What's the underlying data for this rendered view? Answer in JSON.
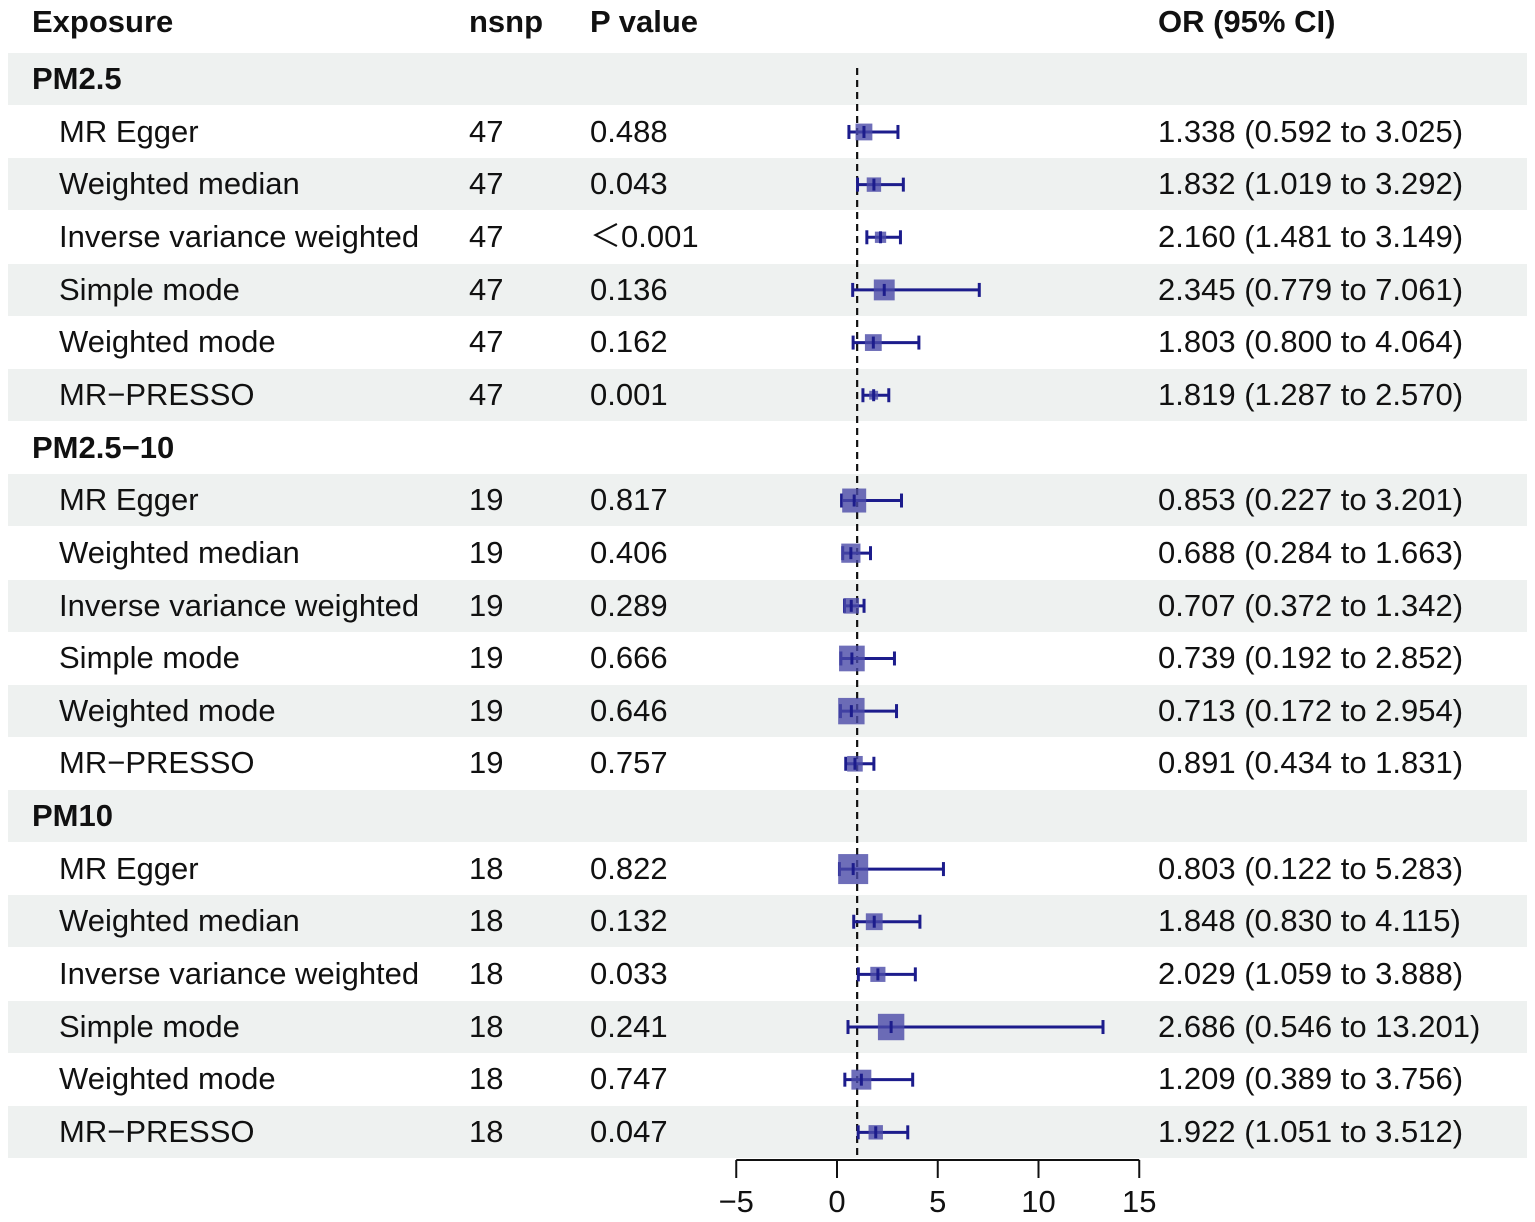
{
  "headers": {
    "exposure": "Exposure",
    "nsnp": "nsnp",
    "pvalue": "P value",
    "or_ci": "OR (95% CI)"
  },
  "colors": {
    "stripe": "#eef1f0",
    "marker": "#1c1c8c",
    "box_fill": "#4a4aa8"
  },
  "chart_data": {
    "type": "forest",
    "reference_line": 1,
    "xlim": [
      -5,
      15
    ],
    "x_ticks": [
      -5,
      0,
      5,
      10,
      15
    ],
    "x_tick_labels": [
      "−5",
      "0",
      "5",
      "10",
      "15"
    ],
    "rows": [
      {
        "kind": "group",
        "label": "PM2.5"
      },
      {
        "kind": "item",
        "label": "MR Egger",
        "nsnp": "47",
        "p": "0.488",
        "ci_text": "1.338 (0.592 to 3.025)",
        "or": 1.338,
        "lo": 0.592,
        "hi": 3.025,
        "weight": 0.45
      },
      {
        "kind": "item",
        "label": "Weighted median",
        "nsnp": "47",
        "p": "0.043",
        "ci_text": "1.832 (1.019 to 3.292)",
        "or": 1.832,
        "lo": 1.019,
        "hi": 3.292,
        "weight": 0.35
      },
      {
        "kind": "item",
        "label": "Inverse variance weighted",
        "nsnp": "47",
        "p": "＜0.001",
        "ci_text": "2.160 (1.481 to 3.149)",
        "or": 2.16,
        "lo": 1.481,
        "hi": 3.149,
        "weight": 0.22
      },
      {
        "kind": "item",
        "label": "Simple mode",
        "nsnp": "47",
        "p": "0.136",
        "ci_text": "2.345 (0.779 to 7.061)",
        "or": 2.345,
        "lo": 0.779,
        "hi": 7.061,
        "weight": 0.62
      },
      {
        "kind": "item",
        "label": "Weighted mode",
        "nsnp": "47",
        "p": "0.162",
        "ci_text": "1.803 (0.800 to 4.064)",
        "or": 1.803,
        "lo": 0.8,
        "hi": 4.064,
        "weight": 0.45
      },
      {
        "kind": "item",
        "label": "MR−PRESSO",
        "nsnp": "47",
        "p": "0.001",
        "ci_text": "1.819 (1.287 to 2.570)",
        "or": 1.819,
        "lo": 1.287,
        "hi": 2.57,
        "weight": 0.12
      },
      {
        "kind": "group",
        "label": "PM2.5−10"
      },
      {
        "kind": "item",
        "label": "MR Egger",
        "nsnp": "19",
        "p": "0.817",
        "ci_text": "0.853 (0.227 to 3.201)",
        "or": 0.853,
        "lo": 0.227,
        "hi": 3.201,
        "weight": 0.75
      },
      {
        "kind": "item",
        "label": "Weighted median",
        "nsnp": "19",
        "p": "0.406",
        "ci_text": "0.688 (0.284 to 1.663)",
        "or": 0.688,
        "lo": 0.284,
        "hi": 1.663,
        "weight": 0.55
      },
      {
        "kind": "item",
        "label": "Inverse variance weighted",
        "nsnp": "19",
        "p": "0.289",
        "ci_text": "0.707 (0.372 to 1.342)",
        "or": 0.707,
        "lo": 0.372,
        "hi": 1.342,
        "weight": 0.4
      },
      {
        "kind": "item",
        "label": "Simple mode",
        "nsnp": "19",
        "p": "0.666",
        "ci_text": "0.739 (0.192 to 2.852)",
        "or": 0.739,
        "lo": 0.192,
        "hi": 2.852,
        "weight": 0.82
      },
      {
        "kind": "item",
        "label": "Weighted mode",
        "nsnp": "19",
        "p": "0.646",
        "ci_text": "0.713 (0.172 to 2.954)",
        "or": 0.713,
        "lo": 0.172,
        "hi": 2.954,
        "weight": 0.85
      },
      {
        "kind": "item",
        "label": "MR−PRESSO",
        "nsnp": "19",
        "p": "0.757",
        "ci_text": "0.891 (0.434 to 1.831)",
        "or": 0.891,
        "lo": 0.434,
        "hi": 1.831,
        "weight": 0.4
      },
      {
        "kind": "group",
        "label": "PM10"
      },
      {
        "kind": "item",
        "label": "MR Egger",
        "nsnp": "18",
        "p": "0.822",
        "ci_text": "0.803 (0.122 to 5.283)",
        "or": 0.803,
        "lo": 0.122,
        "hi": 5.283,
        "weight": 1.0
      },
      {
        "kind": "item",
        "label": "Weighted median",
        "nsnp": "18",
        "p": "0.132",
        "ci_text": "1.848 (0.830 to 4.115)",
        "or": 1.848,
        "lo": 0.83,
        "hi": 4.115,
        "weight": 0.45
      },
      {
        "kind": "item",
        "label": "Inverse variance weighted",
        "nsnp": "18",
        "p": "0.033",
        "ci_text": "2.029 (1.059 to 3.888)",
        "or": 2.029,
        "lo": 1.059,
        "hi": 3.888,
        "weight": 0.38
      },
      {
        "kind": "item",
        "label": "Simple mode",
        "nsnp": "18",
        "p": "0.241",
        "ci_text": "2.686 (0.546 to 13.201)",
        "or": 2.686,
        "lo": 0.546,
        "hi": 13.201,
        "weight": 0.85
      },
      {
        "kind": "item",
        "label": "Weighted mode",
        "nsnp": "18",
        "p": "0.747",
        "ci_text": "1.209 (0.389 to 3.756)",
        "or": 1.209,
        "lo": 0.389,
        "hi": 3.756,
        "weight": 0.58
      },
      {
        "kind": "item",
        "label": "MR−PRESSO",
        "nsnp": "18",
        "p": "0.047",
        "ci_text": "1.922 (1.051 to 3.512)",
        "or": 1.922,
        "lo": 1.051,
        "hi": 3.512,
        "weight": 0.35
      }
    ]
  }
}
